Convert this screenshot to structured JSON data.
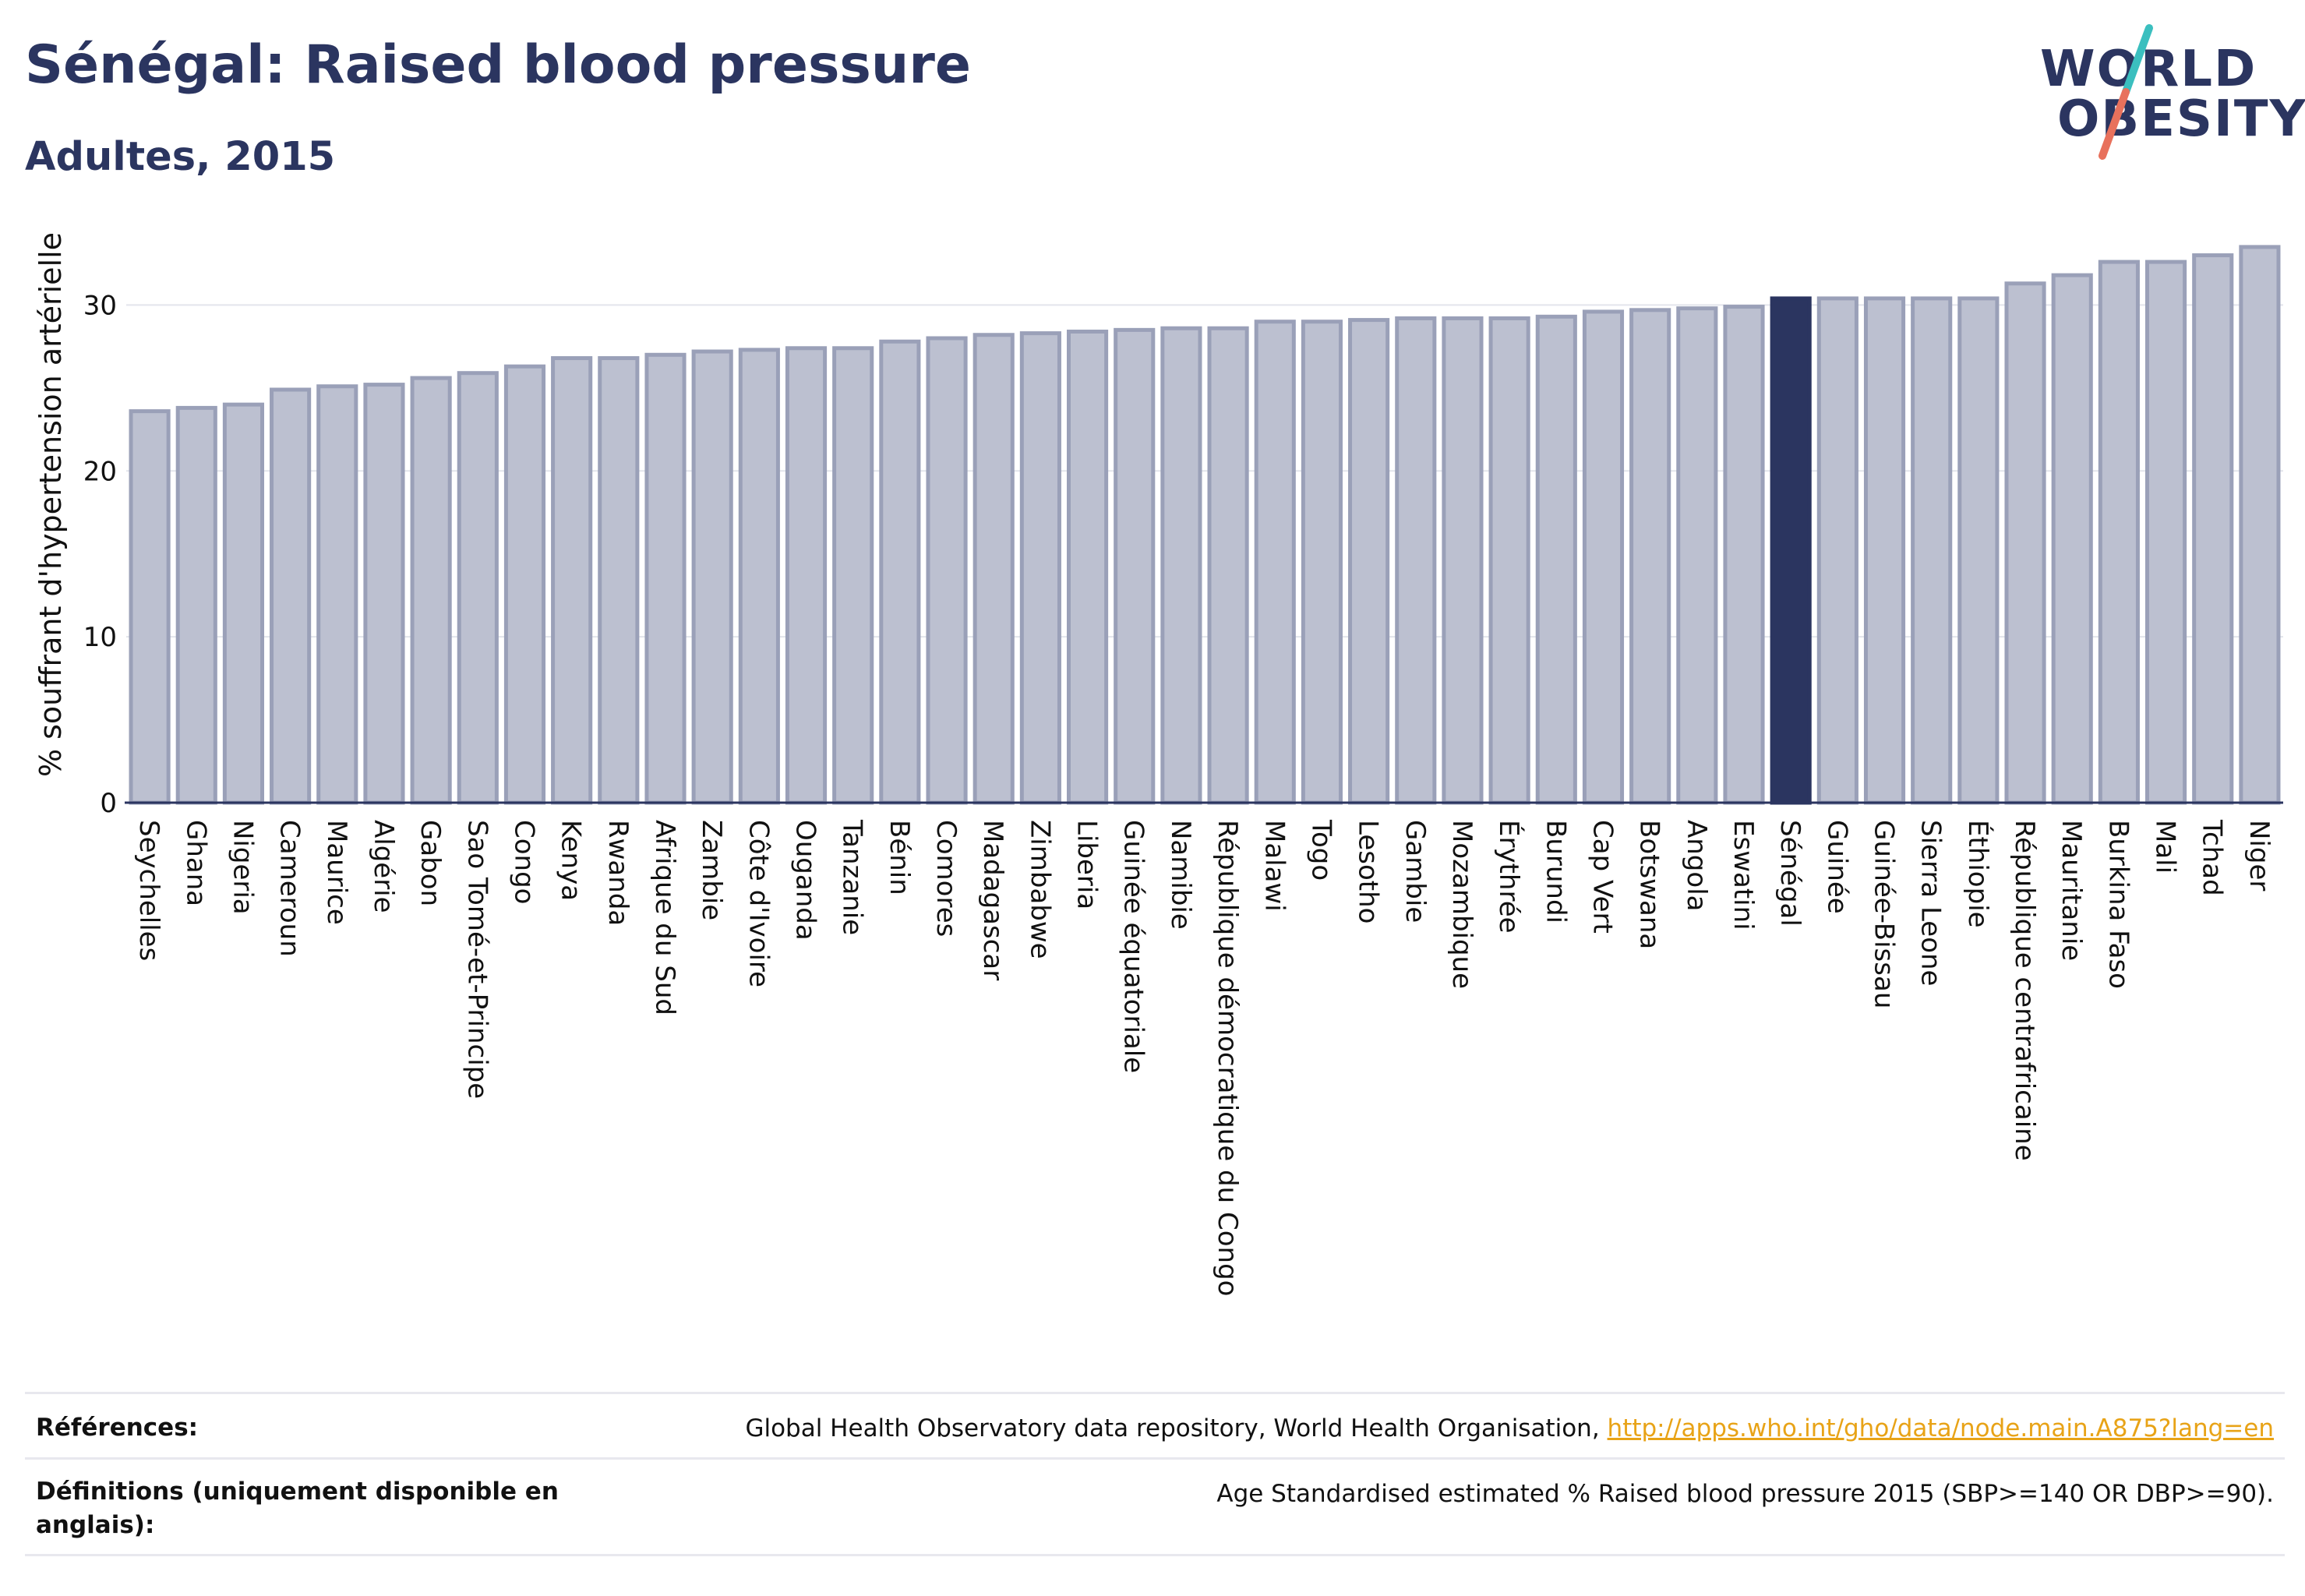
{
  "header": {
    "title": "Sénégal: Raised blood pressure",
    "subtitle": "Adultes, 2015"
  },
  "logo": {
    "line1": "WORLD",
    "line2": "OBESITY",
    "colors": {
      "text": "#2b3560",
      "slash_top": "#3bbfbf",
      "slash_bottom": "#e8715c"
    }
  },
  "colors": {
    "bar": "#bcc0d0",
    "bar_border": "#9aa0b8",
    "highlight": "#2b3560",
    "grid": "#e3e5ec",
    "axis": "#2b3560"
  },
  "chart_data": {
    "type": "bar",
    "ylabel": "% souffrant d'hypertension artérielle",
    "ylim": [
      0,
      35
    ],
    "yticks": [
      0,
      10,
      20,
      30
    ],
    "grid": true,
    "highlight": "Sénégal",
    "categories": [
      "Seychelles",
      "Ghana",
      "Nigeria",
      "Cameroun",
      "Maurice",
      "Algérie",
      "Gabon",
      "Sao Tomé-et-Principe",
      "Congo",
      "Kenya",
      "Rwanda",
      "Afrique du Sud",
      "Zambie",
      "Côte d'Ivoire",
      "Ouganda",
      "Tanzanie",
      "Bénin",
      "Comores",
      "Madagascar",
      "Zimbabwe",
      "Liberia",
      "Guinée équatoriale",
      "Namibie",
      "République démocratique du Congo",
      "Malawi",
      "Togo",
      "Lesotho",
      "Gambie",
      "Mozambique",
      "Érythrée",
      "Burundi",
      "Cap Vert",
      "Botswana",
      "Angola",
      "Eswatini",
      "Sénégal",
      "Guinée",
      "Guinée-Bissau",
      "Sierra Leone",
      "Éthiopie",
      "République centrafricaine",
      "Mauritanie",
      "Burkina Faso",
      "Mali",
      "Tchad",
      "Niger"
    ],
    "values": [
      23.6,
      23.8,
      24.0,
      24.9,
      25.1,
      25.2,
      25.6,
      25.9,
      26.3,
      26.8,
      26.8,
      27.0,
      27.2,
      27.3,
      27.4,
      27.4,
      27.8,
      28.0,
      28.2,
      28.3,
      28.4,
      28.5,
      28.6,
      28.6,
      29.0,
      29.0,
      29.1,
      29.2,
      29.2,
      29.2,
      29.3,
      29.6,
      29.7,
      29.8,
      29.9,
      30.4,
      30.4,
      30.4,
      30.4,
      30.4,
      31.3,
      31.8,
      32.6,
      32.6,
      33.0,
      33.5
    ]
  },
  "footer": {
    "references_label": "Références:",
    "references_text": "Global Health Observatory data repository, World Health Organisation, ",
    "references_link": "http://apps.who.int/gho/data/node.main.A875?lang=en",
    "definitions_label": "Définitions (uniquement disponible en anglais):",
    "definitions_text": "Age Standardised estimated % Raised blood pressure 2015 (SBP>=140 OR DBP>=90)."
  }
}
